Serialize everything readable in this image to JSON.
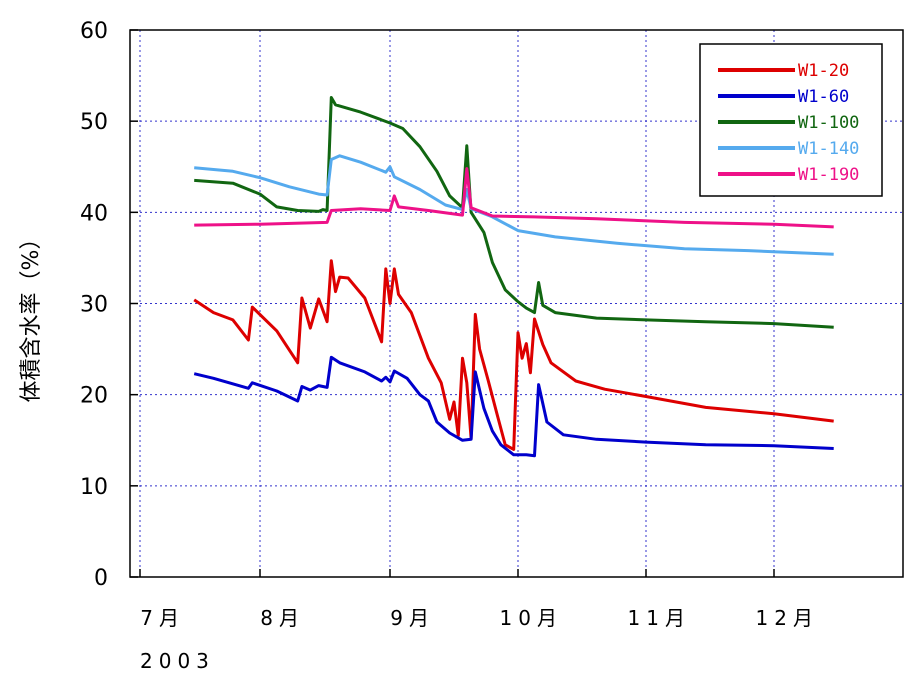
{
  "chart_data": {
    "type": "line",
    "title": "",
    "xlabel": "",
    "ylabel": "体積含水率（%）",
    "ylim": [
      0,
      60
    ],
    "yticks": [
      0,
      10,
      20,
      30,
      40,
      50,
      60
    ],
    "xlim": [
      "2003-07-01",
      "2003-12-01"
    ],
    "xticks": [
      {
        "date": "2003-07-01",
        "label": "7月"
      },
      {
        "date": "2003-08-01",
        "label": "8月"
      },
      {
        "date": "2003-09-01",
        "label": "9月"
      },
      {
        "date": "2003-10-01",
        "label": "10月"
      },
      {
        "date": "2003-11-01",
        "label": "11月"
      },
      {
        "date": "2003-12-01",
        "label": "12月"
      }
    ],
    "year_label": "2003",
    "grid": true,
    "legend_position": "top-right",
    "series": [
      {
        "name": "W1-20",
        "color": "#dd0000",
        "points": [
          [
            "2003-07-15",
            30.4
          ],
          [
            "2003-07-20",
            29.0
          ],
          [
            "2003-07-25",
            28.2
          ],
          [
            "2003-07-29",
            26.0
          ],
          [
            "2003-07-30",
            29.6
          ],
          [
            "2003-08-05",
            27.0
          ],
          [
            "2003-08-10",
            23.5
          ],
          [
            "2003-08-11",
            30.6
          ],
          [
            "2003-08-13",
            27.3
          ],
          [
            "2003-08-15",
            30.5
          ],
          [
            "2003-08-17",
            28.0
          ],
          [
            "2003-08-18",
            34.7
          ],
          [
            "2003-08-19",
            31.3
          ],
          [
            "2003-08-20",
            32.9
          ],
          [
            "2003-08-22",
            32.8
          ],
          [
            "2003-08-26",
            30.6
          ],
          [
            "2003-08-30",
            25.8
          ],
          [
            "2003-08-31",
            33.8
          ],
          [
            "2003-09-01",
            30.0
          ],
          [
            "2003-09-02",
            33.8
          ],
          [
            "2003-09-03",
            31.0
          ],
          [
            "2003-09-06",
            29.0
          ],
          [
            "2003-09-10",
            24.0
          ],
          [
            "2003-09-13",
            21.3
          ],
          [
            "2003-09-15",
            17.3
          ],
          [
            "2003-09-16",
            19.2
          ],
          [
            "2003-09-17",
            15.5
          ],
          [
            "2003-09-18",
            24.0
          ],
          [
            "2003-09-19",
            21.3
          ],
          [
            "2003-09-20",
            15.2
          ],
          [
            "2003-09-21",
            28.8
          ],
          [
            "2003-09-22",
            25.0
          ],
          [
            "2003-09-24",
            21.6
          ],
          [
            "2003-09-26",
            18.0
          ],
          [
            "2003-09-28",
            14.5
          ],
          [
            "2003-09-30",
            14.0
          ],
          [
            "2003-10-01",
            26.8
          ],
          [
            "2003-10-02",
            24.0
          ],
          [
            "2003-10-03",
            25.6
          ],
          [
            "2003-10-04",
            22.4
          ],
          [
            "2003-10-05",
            28.3
          ],
          [
            "2003-10-07",
            25.5
          ],
          [
            "2003-10-09",
            23.5
          ],
          [
            "2003-10-15",
            21.5
          ],
          [
            "2003-10-22",
            20.6
          ],
          [
            "2003-11-01",
            19.8
          ],
          [
            "2003-11-15",
            18.6
          ],
          [
            "2003-12-01",
            17.9
          ],
          [
            "2003-12-15",
            17.1
          ]
        ]
      },
      {
        "name": "W1-60",
        "color": "#0000cc",
        "points": [
          [
            "2003-07-15",
            22.3
          ],
          [
            "2003-07-20",
            21.8
          ],
          [
            "2003-07-29",
            20.7
          ],
          [
            "2003-07-30",
            21.3
          ],
          [
            "2003-08-05",
            20.4
          ],
          [
            "2003-08-10",
            19.3
          ],
          [
            "2003-08-11",
            20.9
          ],
          [
            "2003-08-13",
            20.5
          ],
          [
            "2003-08-15",
            21.0
          ],
          [
            "2003-08-17",
            20.8
          ],
          [
            "2003-08-18",
            24.1
          ],
          [
            "2003-08-20",
            23.5
          ],
          [
            "2003-08-26",
            22.5
          ],
          [
            "2003-08-30",
            21.5
          ],
          [
            "2003-08-31",
            21.9
          ],
          [
            "2003-09-01",
            21.4
          ],
          [
            "2003-09-02",
            22.6
          ],
          [
            "2003-09-05",
            21.8
          ],
          [
            "2003-09-08",
            20.0
          ],
          [
            "2003-09-10",
            19.3
          ],
          [
            "2003-09-12",
            17.0
          ],
          [
            "2003-09-15",
            15.8
          ],
          [
            "2003-09-18",
            15.0
          ],
          [
            "2003-09-20",
            15.1
          ],
          [
            "2003-09-21",
            22.5
          ],
          [
            "2003-09-23",
            18.5
          ],
          [
            "2003-09-25",
            16.0
          ],
          [
            "2003-09-27",
            14.5
          ],
          [
            "2003-09-30",
            13.4
          ],
          [
            "2003-10-03",
            13.4
          ],
          [
            "2003-10-05",
            13.3
          ],
          [
            "2003-10-06",
            21.1
          ],
          [
            "2003-10-08",
            17.0
          ],
          [
            "2003-10-12",
            15.6
          ],
          [
            "2003-10-20",
            15.1
          ],
          [
            "2003-11-01",
            14.8
          ],
          [
            "2003-11-15",
            14.5
          ],
          [
            "2003-12-01",
            14.4
          ],
          [
            "2003-12-15",
            14.1
          ]
        ]
      },
      {
        "name": "W1-100",
        "color": "#116611",
        "points": [
          [
            "2003-07-15",
            43.5
          ],
          [
            "2003-07-25",
            43.2
          ],
          [
            "2003-08-01",
            42.0
          ],
          [
            "2003-08-05",
            40.6
          ],
          [
            "2003-08-10",
            40.2
          ],
          [
            "2003-08-15",
            40.1
          ],
          [
            "2003-08-16",
            40.3
          ],
          [
            "2003-08-17",
            40.2
          ],
          [
            "2003-08-18",
            52.6
          ],
          [
            "2003-08-19",
            51.8
          ],
          [
            "2003-08-25",
            51.0
          ],
          [
            "2003-09-01",
            49.8
          ],
          [
            "2003-09-04",
            49.2
          ],
          [
            "2003-09-08",
            47.2
          ],
          [
            "2003-09-12",
            44.5
          ],
          [
            "2003-09-15",
            41.8
          ],
          [
            "2003-09-18",
            40.5
          ],
          [
            "2003-09-19",
            47.3
          ],
          [
            "2003-09-20",
            40.0
          ],
          [
            "2003-09-23",
            37.8
          ],
          [
            "2003-09-25",
            34.5
          ],
          [
            "2003-09-28",
            31.5
          ],
          [
            "2003-10-01",
            30.2
          ],
          [
            "2003-10-03",
            29.5
          ],
          [
            "2003-10-05",
            29.0
          ],
          [
            "2003-10-06",
            32.3
          ],
          [
            "2003-10-07",
            29.8
          ],
          [
            "2003-10-10",
            29.0
          ],
          [
            "2003-10-20",
            28.4
          ],
          [
            "2003-11-01",
            28.2
          ],
          [
            "2003-11-15",
            28.0
          ],
          [
            "2003-12-01",
            27.8
          ],
          [
            "2003-12-15",
            27.4
          ]
        ]
      },
      {
        "name": "W1-140",
        "color": "#55aaee",
        "points": [
          [
            "2003-07-15",
            44.9
          ],
          [
            "2003-07-25",
            44.5
          ],
          [
            "2003-08-01",
            43.8
          ],
          [
            "2003-08-08",
            42.8
          ],
          [
            "2003-08-15",
            42.0
          ],
          [
            "2003-08-17",
            41.9
          ],
          [
            "2003-08-18",
            45.8
          ],
          [
            "2003-08-20",
            46.2
          ],
          [
            "2003-08-25",
            45.5
          ],
          [
            "2003-08-31",
            44.4
          ],
          [
            "2003-09-01",
            45.0
          ],
          [
            "2003-09-02",
            43.9
          ],
          [
            "2003-09-08",
            42.5
          ],
          [
            "2003-09-14",
            40.8
          ],
          [
            "2003-09-18",
            40.3
          ],
          [
            "2003-09-19",
            42.5
          ],
          [
            "2003-09-20",
            40.4
          ],
          [
            "2003-09-25",
            39.5
          ],
          [
            "2003-10-01",
            38.0
          ],
          [
            "2003-10-10",
            37.3
          ],
          [
            "2003-10-25",
            36.6
          ],
          [
            "2003-11-10",
            36.0
          ],
          [
            "2003-11-25",
            35.8
          ],
          [
            "2003-12-15",
            35.4
          ]
        ]
      },
      {
        "name": "W1-190",
        "color": "#ee1188",
        "points": [
          [
            "2003-07-15",
            38.6
          ],
          [
            "2003-08-01",
            38.7
          ],
          [
            "2003-08-17",
            38.9
          ],
          [
            "2003-08-18",
            40.2
          ],
          [
            "2003-08-25",
            40.4
          ],
          [
            "2003-09-01",
            40.2
          ],
          [
            "2003-09-02",
            41.8
          ],
          [
            "2003-09-03",
            40.6
          ],
          [
            "2003-09-10",
            40.2
          ],
          [
            "2003-09-18",
            39.7
          ],
          [
            "2003-09-19",
            44.8
          ],
          [
            "2003-09-20",
            40.5
          ],
          [
            "2003-09-25",
            39.6
          ],
          [
            "2003-10-05",
            39.5
          ],
          [
            "2003-10-20",
            39.3
          ],
          [
            "2003-11-10",
            38.9
          ],
          [
            "2003-12-01",
            38.7
          ],
          [
            "2003-12-15",
            38.4
          ]
        ]
      }
    ]
  }
}
